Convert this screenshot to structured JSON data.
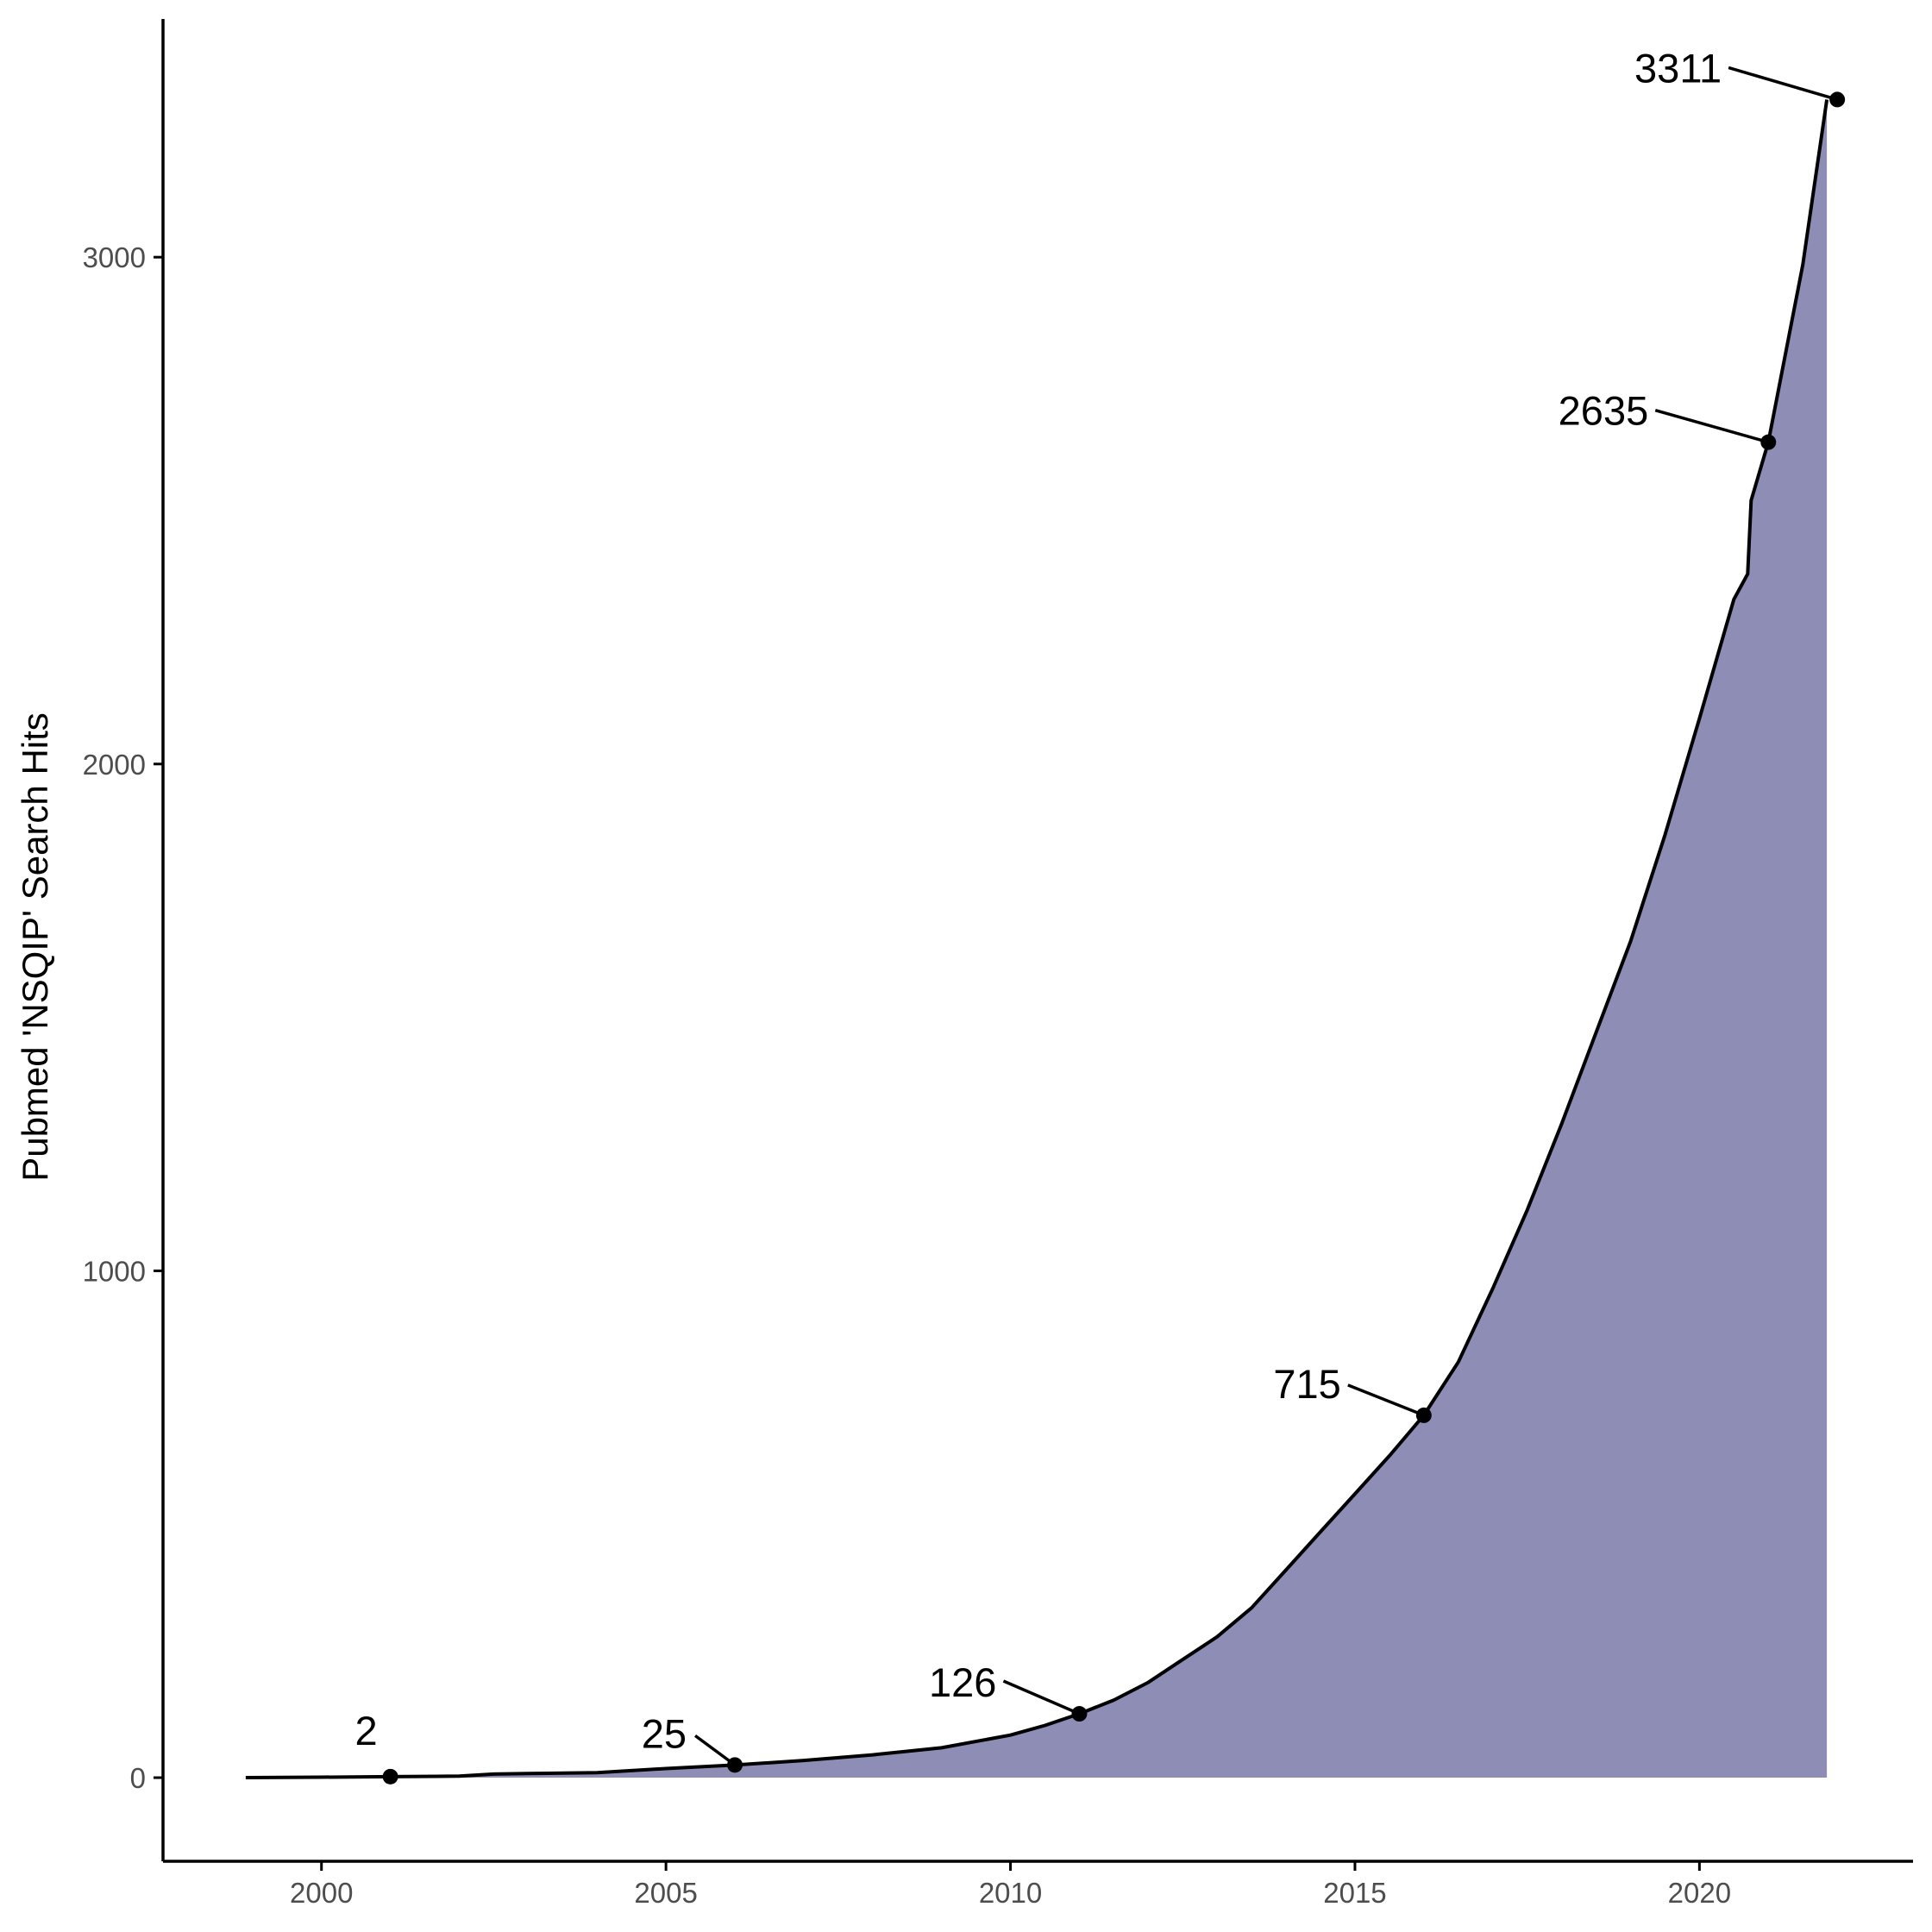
{
  "chart_data": {
    "type": "area",
    "title": "",
    "xlabel": "",
    "ylabel": "Pubmed 'NSQIP' Search Hits",
    "xlim": [
      1997.7,
      2023.1
    ],
    "ylim": [
      -165,
      3470
    ],
    "x_ticks": [
      2000,
      2005,
      2010,
      2015,
      2020
    ],
    "y_ticks": [
      0,
      1000,
      2000,
      3000
    ],
    "grid": false,
    "legend": "none",
    "colors": {
      "fill": "#8e8db5",
      "line": "#000000",
      "axis": "#000000",
      "tick_text": "#4d4d4d"
    },
    "series": [
      {
        "x": [
          1998.9,
          2000.0,
          2001.0,
          2002.0,
          2002.5,
          2003.0,
          2004.0,
          2005.0,
          2006.0,
          2007.0,
          2008.0,
          2009.0,
          2010.0,
          2010.5,
          2011.0,
          2011.5,
          2012.0,
          2012.5,
          2013.0,
          2013.5,
          2014.0,
          2014.5,
          2015.0,
          2015.5,
          2016.0,
          2016.5,
          2017.0,
          2017.5,
          2018.0,
          2018.5,
          2019.0,
          2019.5,
          2020.0,
          2020.5,
          2020.7,
          2020.75,
          2021.0,
          2021.5,
          2021.85
        ],
        "y": [
          0,
          1,
          2,
          3,
          7,
          8,
          10,
          18,
          25,
          34,
          45,
          59,
          84,
          103,
          126,
          153,
          188,
          233,
          278,
          335,
          410,
          485,
          560,
          635,
          715,
          820,
          965,
          1120,
          1290,
          1470,
          1650,
          1860,
          2090,
          2325,
          2375,
          2520,
          2635,
          2985,
          3311
        ]
      }
    ],
    "points": [
      {
        "x": 2001.0,
        "y": 2
      },
      {
        "x": 2006.0,
        "y": 25
      },
      {
        "x": 2011.0,
        "y": 126
      },
      {
        "x": 2016.0,
        "y": 715
      },
      {
        "x": 2021.0,
        "y": 2635
      },
      {
        "x": 2022.0,
        "y": 3311
      }
    ],
    "annotations": [
      {
        "text": "2",
        "x": 2001.0,
        "y": 2
      },
      {
        "text": "25",
        "x": 2006.0,
        "y": 25
      },
      {
        "text": "126",
        "x": 2011.0,
        "y": 126
      },
      {
        "text": "715",
        "x": 2016.0,
        "y": 715
      },
      {
        "text": "2635",
        "x": 2021.0,
        "y": 2635
      },
      {
        "text": "3311",
        "x": 2022.0,
        "y": 3311
      }
    ]
  }
}
